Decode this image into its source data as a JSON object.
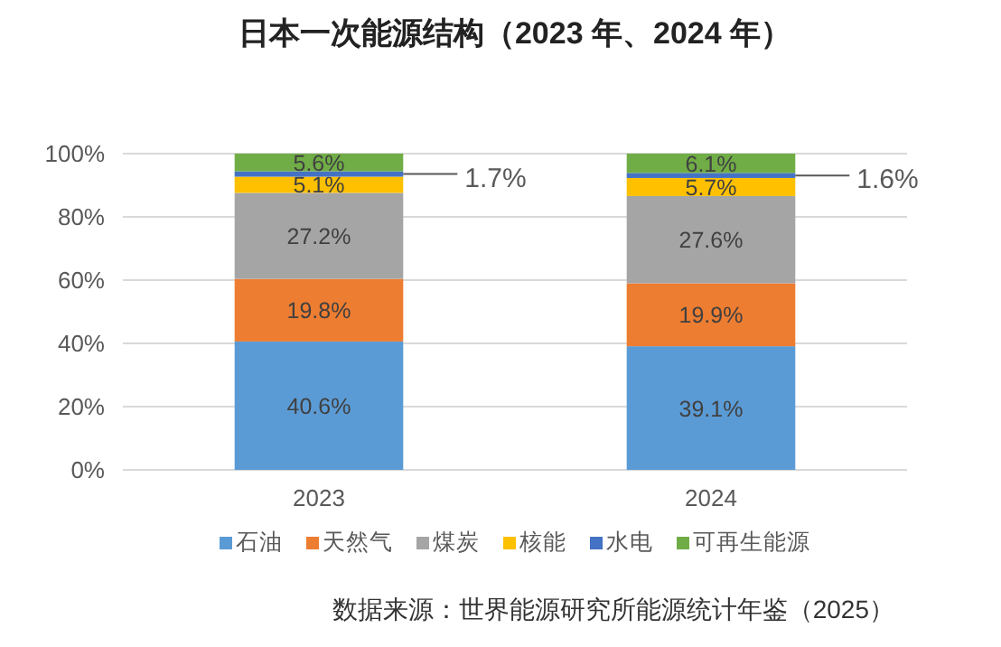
{
  "chart_data": {
    "type": "bar",
    "title": "日本一次能源结构（2023 年、2024 年）",
    "categories": [
      "2023",
      "2024"
    ],
    "stacked": true,
    "grid": "y",
    "legend": "bottom",
    "ylim": [
      0,
      100
    ],
    "yticks": [
      {
        "value": 0,
        "label": "0%"
      },
      {
        "value": 20,
        "label": "20%"
      },
      {
        "value": 40,
        "label": "40%"
      },
      {
        "value": 60,
        "label": "60%"
      },
      {
        "value": 80,
        "label": "80%"
      },
      {
        "value": 100,
        "label": "100%"
      }
    ],
    "series": [
      {
        "name": "石油",
        "color": "#5b9bd5",
        "values": [
          40.6,
          39.1
        ],
        "value_labels": [
          "40.6%",
          "39.1%"
        ]
      },
      {
        "name": "天然气",
        "color": "#ed7d31",
        "values": [
          19.8,
          19.9
        ],
        "value_labels": [
          "19.8%",
          "19.9%"
        ]
      },
      {
        "name": "煤炭",
        "color": "#a5a5a5",
        "values": [
          27.2,
          27.6
        ],
        "value_labels": [
          "27.2%",
          "27.6%"
        ]
      },
      {
        "name": "核能",
        "color": "#ffc000",
        "values": [
          5.1,
          5.7
        ],
        "value_labels": [
          "5.1%",
          "5.7%"
        ]
      },
      {
        "name": "水电",
        "color": "#4472c4",
        "values": [
          1.7,
          1.6
        ],
        "value_labels": [
          "1.7%",
          "1.6%"
        ]
      },
      {
        "name": "可再生能源",
        "color": "#70ad47",
        "values": [
          5.6,
          6.1
        ],
        "value_labels": [
          "5.6%",
          "6.1%"
        ]
      }
    ],
    "annotations": [
      "数据来源：世界能源研究所能源统计年鉴（2025）"
    ]
  }
}
